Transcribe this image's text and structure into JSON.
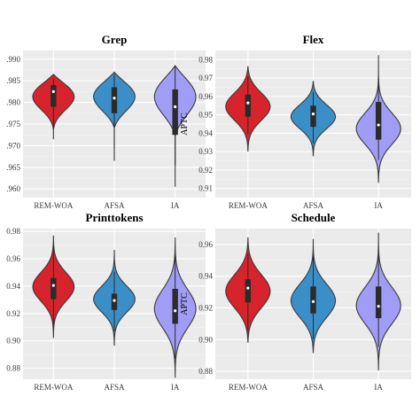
{
  "chart_data": [
    {
      "type": "violin",
      "title": "Grep",
      "xlabel": "",
      "ylabel": "",
      "categories": [
        "REM-WOA",
        "AFSA",
        "IA"
      ],
      "ylim": [
        0.958,
        0.992
      ],
      "yticks": [
        0.96,
        0.965,
        0.97,
        0.975,
        0.98,
        0.985,
        0.99
      ],
      "ytick_labels": [
        ".960",
        ".965",
        ".970",
        ".975",
        ".980",
        ".985",
        ".990"
      ],
      "grid": true,
      "legend": "none",
      "series": [
        {
          "category": "REM-WOA",
          "color": "#d7232b",
          "min": 0.9715,
          "max": 0.9865,
          "q1": 0.979,
          "median": 0.9825,
          "q3": 0.984,
          "whisker_low": 0.974,
          "whisker_high": 0.9855,
          "mode": 0.9815,
          "spread": 0.0032
        },
        {
          "category": "AFSA",
          "color": "#3b8fc9",
          "min": 0.9665,
          "max": 0.987,
          "q1": 0.9775,
          "median": 0.981,
          "q3": 0.9835,
          "whisker_low": 0.9695,
          "whisker_high": 0.9865,
          "mode": 0.9815,
          "spread": 0.0035
        },
        {
          "category": "IA",
          "color": "#a19cf5",
          "min": 0.9605,
          "max": 0.9885,
          "q1": 0.9725,
          "median": 0.979,
          "q3": 0.983,
          "whisker_low": 0.9655,
          "whisker_high": 0.9885,
          "mode": 0.9815,
          "spread": 0.0045
        }
      ]
    },
    {
      "type": "violin",
      "title": "Flex",
      "xlabel": "",
      "ylabel": "APTC",
      "categories": [
        "REM-WOA",
        "AFSA",
        "IA"
      ],
      "ylim": [
        0.905,
        0.985
      ],
      "yticks": [
        0.91,
        0.92,
        0.93,
        0.94,
        0.95,
        0.96,
        0.97,
        0.98
      ],
      "ytick_labels": [
        "0.91",
        "0.92",
        "0.93",
        "0.94",
        "0.95",
        "0.96",
        "0.97",
        "0.98"
      ],
      "grid": true,
      "legend": "none",
      "series": [
        {
          "category": "REM-WOA",
          "color": "#d7232b",
          "min": 0.93,
          "max": 0.9765,
          "q1": 0.949,
          "median": 0.9565,
          "q3": 0.961,
          "whisker_low": 0.9395,
          "whisker_high": 0.971,
          "mode": 0.9545,
          "spread": 0.0075
        },
        {
          "category": "AFSA",
          "color": "#3b8fc9",
          "min": 0.9275,
          "max": 0.9685,
          "q1": 0.9435,
          "median": 0.9505,
          "q3": 0.955,
          "whisker_low": 0.9345,
          "whisker_high": 0.9625,
          "mode": 0.949,
          "spread": 0.0065
        },
        {
          "category": "IA",
          "color": "#a19cf5",
          "min": 0.913,
          "max": 0.9825,
          "q1": 0.9365,
          "median": 0.9445,
          "q3": 0.957,
          "whisker_low": 0.9255,
          "whisker_high": 0.9705,
          "mode": 0.9425,
          "spread": 0.0085
        }
      ]
    },
    {
      "type": "violin",
      "title": "Printtokens",
      "xlabel": "",
      "ylabel": "",
      "categories": [
        "REM-WOA",
        "AFSA",
        "IA"
      ],
      "ylim": [
        0.872,
        0.982
      ],
      "yticks": [
        0.88,
        0.9,
        0.92,
        0.94,
        0.96,
        0.98
      ],
      "ytick_labels": [
        "0.88",
        "0.90",
        "0.92",
        "0.94",
        "0.96",
        "0.98"
      ],
      "grid": true,
      "legend": "none",
      "series": [
        {
          "category": "REM-WOA",
          "color": "#d7232b",
          "min": 0.902,
          "max": 0.977,
          "q1": 0.9305,
          "median": 0.9405,
          "q3": 0.946,
          "whisker_low": 0.912,
          "whisker_high": 0.969,
          "mode": 0.9395,
          "spread": 0.0105
        },
        {
          "category": "AFSA",
          "color": "#3b8fc9",
          "min": 0.8965,
          "max": 0.9665,
          "q1": 0.9225,
          "median": 0.9295,
          "q3": 0.9345,
          "whisker_low": 0.907,
          "whisker_high": 0.9505,
          "mode": 0.9305,
          "spread": 0.0095
        },
        {
          "category": "IA",
          "color": "#a19cf5",
          "min": 0.873,
          "max": 0.9755,
          "q1": 0.9125,
          "median": 0.922,
          "q3": 0.938,
          "whisker_low": 0.887,
          "whisker_high": 0.962,
          "mode": 0.9235,
          "spread": 0.014
        }
      ]
    },
    {
      "type": "violin",
      "title": "Schedule",
      "xlabel": "",
      "ylabel": "APTC",
      "categories": [
        "REM-WOA",
        "AFSA",
        "IA"
      ],
      "ylim": [
        0.875,
        0.97
      ],
      "yticks": [
        0.88,
        0.9,
        0.92,
        0.94,
        0.96
      ],
      "ytick_labels": [
        "0.88",
        "0.90",
        "0.92",
        "0.94",
        "0.96"
      ],
      "grid": true,
      "legend": "none",
      "series": [
        {
          "category": "REM-WOA",
          "color": "#d7232b",
          "min": 0.898,
          "max": 0.9645,
          "q1": 0.9235,
          "median": 0.9325,
          "q3": 0.938,
          "whisker_low": 0.9055,
          "whisker_high": 0.9545,
          "mode": 0.9305,
          "spread": 0.0105
        },
        {
          "category": "AFSA",
          "color": "#3b8fc9",
          "min": 0.8915,
          "max": 0.9635,
          "q1": 0.9165,
          "median": 0.924,
          "q3": 0.9335,
          "whisker_low": 0.9005,
          "whisker_high": 0.9525,
          "mode": 0.9245,
          "spread": 0.0105
        },
        {
          "category": "IA",
          "color": "#a19cf5",
          "min": 0.8805,
          "max": 0.9675,
          "q1": 0.9135,
          "median": 0.921,
          "q3": 0.9335,
          "whisker_low": 0.8955,
          "whisker_high": 0.9525,
          "mode": 0.9215,
          "spread": 0.0115
        }
      ]
    }
  ]
}
